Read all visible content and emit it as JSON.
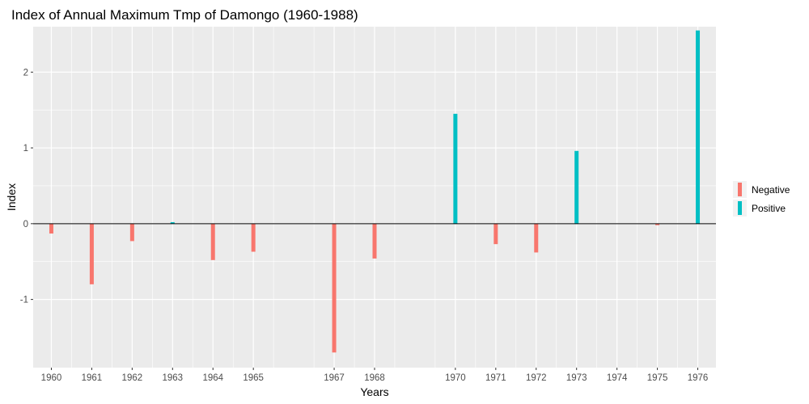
{
  "chart_data": {
    "type": "bar",
    "title": "Index of Annual Maximum Tmp of Damongo (1960-1988)",
    "xlabel": "Years",
    "ylabel": "Index",
    "ylim": [
      -1.9,
      2.6
    ],
    "xlim": [
      1959.55,
      1976.45
    ],
    "yticks": [
      -1,
      0,
      1,
      2
    ],
    "grid": true,
    "legend_position": "right",
    "categories": [
      "1960",
      "1961",
      "1962",
      "1963",
      "1964",
      "1965",
      "1967",
      "1968",
      "1970",
      "1971",
      "1972",
      "1973",
      "1974",
      "1975",
      "1976"
    ],
    "x": [
      1960,
      1961,
      1962,
      1963,
      1964,
      1965,
      1967,
      1968,
      1970,
      1971,
      1972,
      1973,
      1974,
      1975,
      1976
    ],
    "values": [
      -0.13,
      -0.8,
      -0.23,
      0.02,
      -0.48,
      -0.37,
      -1.7,
      -0.46,
      1.45,
      -0.27,
      -0.38,
      0.96,
      0.0,
      -0.02,
      2.55
    ],
    "series": [
      {
        "name": "Negative",
        "color": "#F8766D"
      },
      {
        "name": "Positive",
        "color": "#00BFC4"
      }
    ],
    "colors": {
      "negative": "#F8766D",
      "positive": "#00BFC4",
      "panel_background": "#EBEBEB",
      "grid": "#FFFFFF",
      "zero_line": "#000000"
    }
  }
}
